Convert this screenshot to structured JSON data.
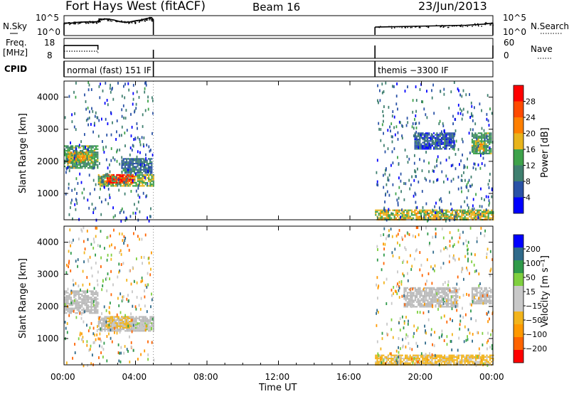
{
  "header": {
    "station": "Fort Hays West (fitACF)",
    "beam": "Beam 16",
    "date": "23/Jun/2013"
  },
  "noise_panel": {
    "left_label": "N.Sky",
    "right_label": "N.Search",
    "ticks_left": [
      "10^5",
      "10^0"
    ],
    "ticks_right": [
      "10^5",
      "10^0"
    ],
    "sky_series": [
      [
        0.0,
        3.2
      ],
      [
        0.4,
        3.2
      ],
      [
        0.8,
        3.4
      ],
      [
        1.2,
        3.5
      ],
      [
        1.6,
        3.5
      ],
      [
        1.9,
        3.6
      ],
      [
        2.0,
        4.2
      ],
      [
        2.4,
        4.3
      ],
      [
        2.8,
        4.0
      ],
      [
        3.2,
        3.5
      ],
      [
        3.6,
        3.4
      ],
      [
        4.0,
        3.8
      ],
      [
        4.3,
        4.0
      ],
      [
        4.6,
        4.4
      ],
      [
        4.9,
        4.7
      ],
      [
        5.0,
        4.0
      ],
      [
        17.4,
        2.1
      ],
      [
        18.5,
        2.2
      ],
      [
        19.5,
        2.3
      ],
      [
        20.5,
        2.4
      ],
      [
        21.5,
        2.5
      ],
      [
        22.5,
        2.6
      ],
      [
        23.5,
        2.9
      ],
      [
        24.0,
        3.2
      ]
    ],
    "ylim": [
      0,
      5
    ]
  },
  "freq_panel": {
    "left_label": "Freq.",
    "left_unit": "[MHz]",
    "right_label": "Nave",
    "ticks_left": [
      "18",
      "8"
    ],
    "ticks_right": [
      "60",
      "0"
    ],
    "freq_series": [
      [
        0.0,
        14.7
      ],
      [
        1.9,
        14.7
      ],
      [
        1.9,
        12.2
      ],
      [
        5.0,
        12.2
      ],
      [
        17.4,
        14.7
      ],
      [
        24.0,
        14.7
      ]
    ],
    "nave_series": [
      [
        0.0,
        20
      ],
      [
        1.9,
        20
      ],
      [
        1.9,
        14
      ],
      [
        5.0,
        14
      ],
      [
        17.4,
        20
      ],
      [
        24.0,
        20
      ]
    ]
  },
  "cpid_panel": {
    "label": "CPID",
    "segments": [
      {
        "start": 0.0,
        "end": 5.0,
        "text": "normal (fast) 151 IF"
      },
      {
        "start": 17.4,
        "end": 24.0,
        "text": "themis −3300 IF"
      }
    ]
  },
  "power_panel": {
    "ylabel": "Slant Range [km]",
    "yticks": [
      "4000",
      "3000",
      "2000",
      "1000"
    ],
    "colorbar_label": "Power [dB]",
    "colorbar_ticks": [
      "28",
      "24",
      "20",
      "16",
      "12",
      "8",
      "4"
    ]
  },
  "velocity_panel": {
    "ylabel": "Slant Range [km]",
    "yticks": [
      "4000",
      "3000",
      "2000",
      "1000"
    ],
    "colorbar_label": "Velocity [m s⁻¹]",
    "colorbar_ticks": [
      "200",
      "100",
      "50",
      "15",
      "−15",
      "−50",
      "−100",
      "−200"
    ]
  },
  "time_axis": {
    "xlabel": "Time UT",
    "ticks": [
      "00:00",
      "04:00",
      "08:00",
      "12:00",
      "16:00",
      "20:00",
      "00:00"
    ]
  },
  "colors": {
    "power_scale": [
      "#0000ff",
      "#2a52a6",
      "#3f7f6f",
      "#3ea24a",
      "#e8b41c",
      "#ff7f00",
      "#ff4a00",
      "#ff0000"
    ],
    "velocity_scale": [
      "#ff0000",
      "#ff6400",
      "#ff9900",
      "#f2b41c",
      "#c8c8c8",
      "#c8c8c8",
      "#7fcf3f",
      "#2f9a4a",
      "#2f6a8a",
      "#0000ff"
    ],
    "ground_scatter": "#b9b9b9"
  },
  "chart_data": {
    "type": "heatmap",
    "x_unit": "hours UT",
    "xlim": [
      0,
      24
    ],
    "ylim": [
      180,
      4500
    ],
    "power_dB_range": [
      0,
      30
    ],
    "velocity_range": [
      -250,
      250
    ],
    "power_blocks": [
      {
        "t0": 0.0,
        "t1": 1.9,
        "r0": 1800,
        "r1": 2500,
        "power": 12
      },
      {
        "t0": 0.2,
        "t1": 1.6,
        "r0": 2000,
        "r1": 2300,
        "power": 17
      },
      {
        "t0": 1.9,
        "t1": 5.0,
        "r0": 1250,
        "r1": 1600,
        "power": 14
      },
      {
        "t0": 2.3,
        "t1": 3.9,
        "r0": 1320,
        "r1": 1600,
        "power": 26
      },
      {
        "t0": 3.2,
        "t1": 4.9,
        "r0": 1650,
        "r1": 2100,
        "power": 8
      },
      {
        "t0": 22.8,
        "t1": 23.9,
        "r0": 2250,
        "r1": 2900,
        "power": 12
      },
      {
        "t0": 23.0,
        "t1": 23.5,
        "r0": 2350,
        "r1": 2650,
        "power": 17
      },
      {
        "t0": 17.4,
        "t1": 24.0,
        "r0": 200,
        "r1": 500,
        "power": 16
      },
      {
        "t0": 19.6,
        "t1": 21.8,
        "r0": 2400,
        "r1": 2900,
        "power": 6
      }
    ],
    "velocity_blocks": [
      {
        "t0": 0.0,
        "t1": 1.9,
        "r0": 1800,
        "r1": 2500,
        "velocity": 0,
        "ground": true
      },
      {
        "t0": 1.9,
        "t1": 5.0,
        "r0": 1250,
        "r1": 1700,
        "velocity": 0,
        "ground": true
      },
      {
        "t0": 2.4,
        "t1": 3.8,
        "r0": 1350,
        "r1": 1700,
        "velocity": -60
      },
      {
        "t0": 3.8,
        "t1": 4.9,
        "r0": 1300,
        "r1": 1500,
        "velocity": 40
      },
      {
        "t0": 19.0,
        "t1": 22.0,
        "r0": 2000,
        "r1": 2600,
        "velocity": 0,
        "ground": true
      },
      {
        "t0": 22.8,
        "t1": 23.9,
        "r0": 2100,
        "r1": 2600,
        "velocity": 0,
        "ground": true
      },
      {
        "t0": 17.4,
        "t1": 24.0,
        "r0": 200,
        "r1": 500,
        "velocity": -60
      }
    ]
  }
}
